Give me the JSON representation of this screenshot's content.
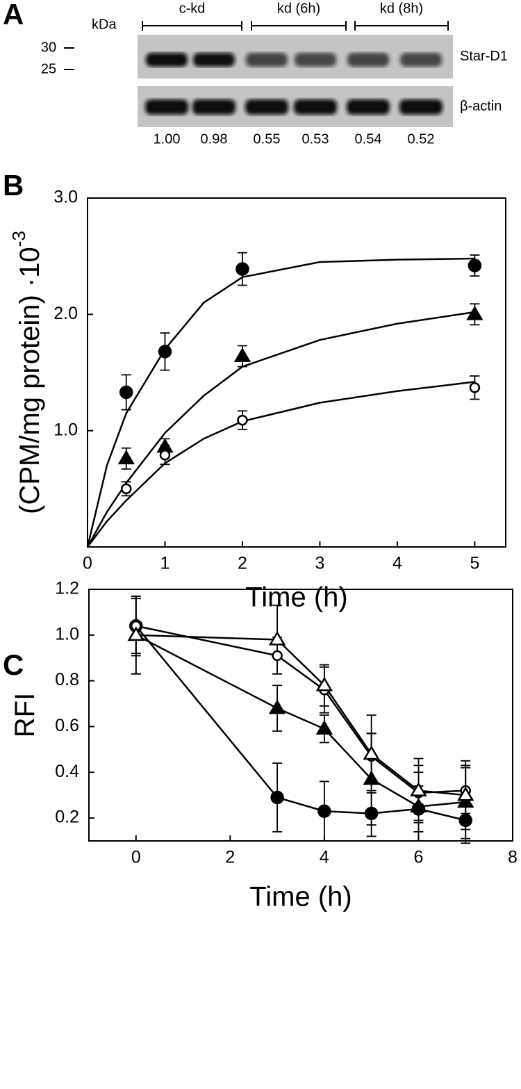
{
  "blot": {
    "panel_label": "A",
    "kda_label": "kDa",
    "groups": [
      "c-kd",
      "kd (6h)",
      "kd (8h)"
    ],
    "markers": [
      "30",
      "25"
    ],
    "rows": [
      "Star-D1",
      "β-actin"
    ],
    "ratios": [
      "1.00",
      "0.98",
      "0.55",
      "0.53",
      "0.54",
      "0.52"
    ]
  },
  "chart_data": [
    {
      "type": "scatter",
      "panel_label": "B",
      "xlabel": "Time (h)",
      "ylabel": "(CPM/mg protein) ·10",
      "ylabel_exponent": "-3",
      "xlim": [
        0,
        5.4
      ],
      "ylim": [
        0,
        3
      ],
      "xticks": [
        0,
        1,
        2,
        3,
        4,
        5
      ],
      "yticks": [
        {
          "value": 1,
          "label": "1.0"
        },
        {
          "value": 2,
          "label": "2.0"
        },
        {
          "value": 3,
          "label": "3.0"
        }
      ],
      "x": [
        0.5,
        1,
        2,
        5
      ],
      "fit_x": [
        0,
        0.25,
        0.5,
        1,
        1.5,
        2,
        3,
        4,
        5
      ],
      "series": [
        {
          "marker": "circle",
          "filled": true,
          "color": "#000000",
          "values": [
            1.33,
            1.68,
            2.39,
            2.42
          ],
          "errors": [
            0.15,
            0.16,
            0.14,
            0.09
          ],
          "fit_values": [
            0,
            0.7,
            1.15,
            1.7,
            2.1,
            2.32,
            2.45,
            2.47,
            2.48
          ]
        },
        {
          "marker": "triangle",
          "filled": true,
          "color": "#000000",
          "values": [
            0.76,
            0.86,
            1.64,
            2.0
          ],
          "errors": [
            0.09,
            0.07,
            0.09,
            0.09
          ],
          "fit_values": [
            0,
            0.3,
            0.55,
            0.98,
            1.3,
            1.55,
            1.78,
            1.92,
            2.02
          ]
        },
        {
          "marker": "circle",
          "filled": false,
          "color": "#000000",
          "values": [
            0.5,
            0.79,
            1.09,
            1.37
          ],
          "errors": [
            0.06,
            0.08,
            0.08,
            0.1
          ],
          "fit_values": [
            0,
            0.22,
            0.4,
            0.72,
            0.93,
            1.08,
            1.24,
            1.34,
            1.42
          ]
        }
      ]
    },
    {
      "type": "line",
      "panel_label": "C",
      "xlabel": "Time (h)",
      "ylabel": "RFI",
      "xlim": [
        -1,
        8
      ],
      "ylim": [
        0.1,
        1.2
      ],
      "xticks": [
        0,
        2,
        4,
        6,
        8
      ],
      "yticks": [
        0.2,
        0.4,
        0.6,
        0.8,
        {
          "value": 1,
          "label": "1.0"
        },
        1.2
      ],
      "x": [
        0,
        3,
        4,
        5,
        6,
        7
      ],
      "series": [
        {
          "marker": "circle",
          "filled": true,
          "color": "#000000",
          "values": [
            1.04,
            0.29,
            0.23,
            0.22,
            0.24,
            0.19
          ],
          "errors": [
            0.13,
            0.15,
            0.13,
            0.1,
            0.1,
            0.1
          ]
        },
        {
          "marker": "triangle",
          "filled": true,
          "color": "#000000",
          "values": [
            1.0,
            0.68,
            0.59,
            0.37,
            0.25,
            0.27
          ],
          "errors": [
            0.17,
            0.1,
            0.06,
            0.2,
            0.15,
            0.16
          ]
        },
        {
          "marker": "circle",
          "filled": false,
          "color": "#000000",
          "values": [
            1.04,
            0.91,
            0.76,
            0.47,
            0.31,
            0.32
          ],
          "errors": [
            0.12,
            0.08,
            0.1,
            0.1,
            0.12,
            0.1
          ]
        },
        {
          "marker": "triangle",
          "filled": false,
          "color": "#000000",
          "values": [
            1.0,
            0.98,
            0.78,
            0.48,
            0.32,
            0.3
          ],
          "errors": [
            0.17,
            0.15,
            0.09,
            0.17,
            0.14,
            0.15
          ]
        }
      ]
    }
  ]
}
